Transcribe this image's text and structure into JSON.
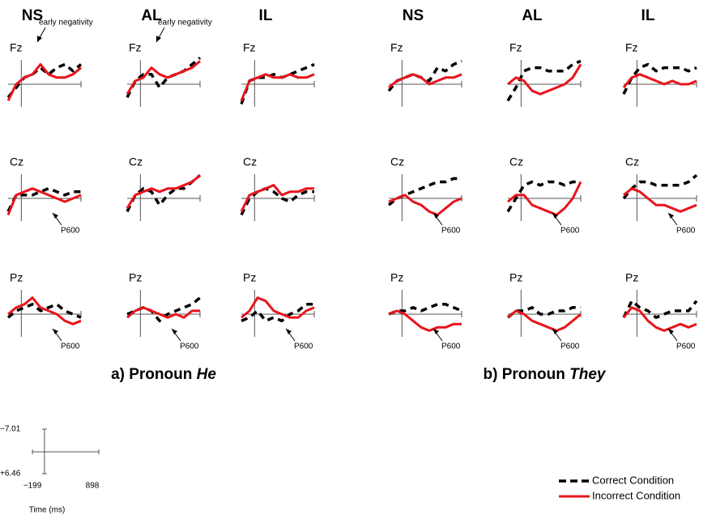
{
  "chart_data": {
    "type": "erp",
    "x": [
      -199,
      -77,
      45,
      167,
      289,
      411,
      533,
      655,
      777,
      898
    ],
    "xlim": [
      -199,
      898
    ],
    "ylim": [
      -7.01,
      6.46
    ],
    "xticks": [
      {
        "value": -199,
        "label": "−199"
      },
      898
    ],
    "yticks": [
      {
        "value": -7.01,
        "label": "−7.01"
      },
      {
        "value": 6.46,
        "label": "+6.46"
      }
    ],
    "xlabel": "Time (ms)",
    "negative_up": true,
    "series": [
      {
        "name": "Correct Condition",
        "color": "#000000",
        "dashed": true
      },
      {
        "name": "Incorrect Condition",
        "color": "#e8141c",
        "dashed": false
      }
    ],
    "groups": [
      {
        "label": "a) Pronoun",
        "emphasis": "He",
        "columns": [
          {
            "name": "NS",
            "electrodes": [
              {
                "name": "Fz",
                "annotation": "early negativity",
                "values": [
                  [
                    4,
                    1,
                    -2,
                    -3,
                    -5,
                    -3,
                    -5,
                    -6,
                    -4,
                    -6
                  ],
                  [
                    5,
                    0,
                    -2,
                    -3,
                    -6,
                    -3,
                    -2,
                    -2,
                    -3,
                    -5
                  ]
                ]
              },
              {
                "name": "Cz",
                "annotation": "P600",
                "values": [
                  [
                    4,
                    -1,
                    -1,
                    -1,
                    -2,
                    -3,
                    -2,
                    -1,
                    -2,
                    -2
                  ],
                  [
                    5,
                    -1,
                    -2,
                    -3,
                    -2,
                    -1,
                    0,
                    1,
                    0,
                    -1
                  ]
                ]
              },
              {
                "name": "Pz",
                "annotation": "P600",
                "values": [
                  [
                    1,
                    -1,
                    -2,
                    -3,
                    -1,
                    -2,
                    -3,
                    -1,
                    0,
                    1
                  ],
                  [
                    0,
                    -2,
                    -3,
                    -5,
                    -2,
                    -1,
                    0,
                    2,
                    3,
                    2
                  ]
                ]
              }
            ]
          },
          {
            "name": "AL",
            "electrodes": [
              {
                "name": "Fz",
                "annotation": "early negativity",
                "values": [
                  [
                    4,
                    -1,
                    -3,
                    -3,
                    1,
                    -2,
                    -3,
                    -4,
                    -6,
                    -8
                  ],
                  [
                    3,
                    -1,
                    -2,
                    -5,
                    -3,
                    -2,
                    -3,
                    -4,
                    -5,
                    -7
                  ]
                ]
              },
              {
                "name": "Cz",
                "values": [
                  [
                    4,
                    -1,
                    -3,
                    -2,
                    2,
                    -1,
                    -3,
                    -3,
                    -5,
                    -7
                  ],
                  [
                    3,
                    -1,
                    -2,
                    -3,
                    -2,
                    -3,
                    -3,
                    -4,
                    -5,
                    -7
                  ]
                ]
              },
              {
                "name": "Pz",
                "annotation": "P600",
                "values": [
                  [
                    0,
                    -1,
                    -2,
                    -1,
                    2,
                    0,
                    -1,
                    -2,
                    -3,
                    -5
                  ],
                  [
                    1,
                    -1,
                    -2,
                    -1,
                    0,
                    1,
                    0,
                    1,
                    -1,
                    -1
                  ]
                ]
              }
            ]
          },
          {
            "name": "IL",
            "electrodes": [
              {
                "name": "Fz",
                "values": [
                  [
                    6,
                    -1,
                    -2,
                    -2,
                    -3,
                    -2,
                    -3,
                    -4,
                    -5,
                    -6
                  ],
                  [
                    5,
                    -1,
                    -2,
                    -3,
                    -2,
                    -2,
                    -3,
                    -2,
                    -2,
                    -3
                  ]
                ]
              },
              {
                "name": "Cz",
                "values": [
                  [
                    5,
                    0,
                    -2,
                    -3,
                    -2,
                    0,
                    1,
                    -1,
                    -2,
                    -2
                  ],
                  [
                    4,
                    -1,
                    -2,
                    -3,
                    -4,
                    -1,
                    -2,
                    -2,
                    -3,
                    -3
                  ]
                ]
              },
              {
                "name": "Pz",
                "annotation": "P600",
                "values": [
                  [
                    2,
                    1,
                    -1,
                    2,
                    1,
                    2,
                    0,
                    -1,
                    -3,
                    -3
                  ],
                  [
                    1,
                    -1,
                    -5,
                    -4,
                    -1,
                    0,
                    1,
                    1,
                    -1,
                    -2
                  ]
                ]
              }
            ]
          }
        ]
      },
      {
        "label": "b) Pronoun",
        "emphasis": "They",
        "columns": [
          {
            "name": "NS",
            "electrodes": [
              {
                "name": "Fz",
                "values": [
                  [
                    2,
                    -1,
                    -2,
                    -3,
                    -2,
                    -1,
                    -5,
                    -4,
                    -6,
                    -7
                  ],
                  [
                    1,
                    -1,
                    -2,
                    -3,
                    -2,
                    0,
                    -1,
                    -2,
                    -2,
                    -3
                  ]
                ]
              },
              {
                "name": "Cz",
                "annotation": "P600",
                "values": [
                  [
                    2,
                    0,
                    -1,
                    -2,
                    -3,
                    -4,
                    -5,
                    -5,
                    -6,
                    -6
                  ],
                  [
                    1,
                    0,
                    -1,
                    1,
                    2,
                    4,
                    5,
                    3,
                    1,
                    0
                  ]
                ]
              },
              {
                "name": "Pz",
                "annotation": "P600",
                "values": [
                  [
                    0,
                    -1,
                    -1,
                    -2,
                    -1,
                    -2,
                    -3,
                    -3,
                    -2,
                    -1
                  ],
                  [
                    0,
                    -1,
                    0,
                    2,
                    4,
                    5,
                    4,
                    4,
                    3,
                    3
                  ]
                ]
              }
            ]
          },
          {
            "name": "AL",
            "electrodes": [
              {
                "name": "Fz",
                "values": [
                  [
                    5,
                    1,
                    -4,
                    -5,
                    -5,
                    -4,
                    -4,
                    -4,
                    -6,
                    -7
                  ],
                  [
                    0,
                    -2,
                    -1,
                    2,
                    3,
                    2,
                    1,
                    0,
                    -2,
                    -6
                  ]
                ]
              },
              {
                "name": "Cz",
                "annotation": "P600",
                "values": [
                  [
                    4,
                    0,
                    -4,
                    -5,
                    -4,
                    -5,
                    -5,
                    -4,
                    -5,
                    -5
                  ],
                  [
                    1,
                    -1,
                    -1,
                    2,
                    3,
                    4,
                    5,
                    3,
                    0,
                    -5
                  ]
                ]
              },
              {
                "name": "Pz",
                "annotation": "P600",
                "values": [
                  [
                    1,
                    -1,
                    -1,
                    -2,
                    0,
                    0,
                    -1,
                    -1,
                    -2,
                    -2
                  ],
                  [
                    1,
                    -1,
                    0,
                    2,
                    3,
                    4,
                    5,
                    4,
                    2,
                    0
                  ]
                ]
              }
            ]
          },
          {
            "name": "IL",
            "electrodes": [
              {
                "name": "Fz",
                "values": [
                  [
                    3,
                    -2,
                    -5,
                    -6,
                    -4,
                    -5,
                    -5,
                    -5,
                    -4,
                    -5
                  ],
                  [
                    1,
                    -2,
                    -3,
                    -2,
                    -1,
                    0,
                    -1,
                    0,
                    0,
                    -1
                  ]
                ]
              },
              {
                "name": "Cz",
                "annotation": "P600",
                "values": [
                  [
                    0,
                    -3,
                    -5,
                    -5,
                    -4,
                    -4,
                    -4,
                    -4,
                    -5,
                    -7
                  ],
                  [
                    -1,
                    -3,
                    -2,
                    0,
                    2,
                    2,
                    3,
                    4,
                    3,
                    2
                  ]
                ]
              },
              {
                "name": "Pz",
                "annotation": "P600",
                "values": [
                  [
                    1,
                    -4,
                    -2,
                    -1,
                    1,
                    0,
                    -1,
                    -1,
                    -1,
                    -4
                  ],
                  [
                    1,
                    -2,
                    -1,
                    2,
                    4,
                    5,
                    4,
                    3,
                    4,
                    3
                  ]
                ]
              }
            ]
          }
        ]
      }
    ]
  }
}
